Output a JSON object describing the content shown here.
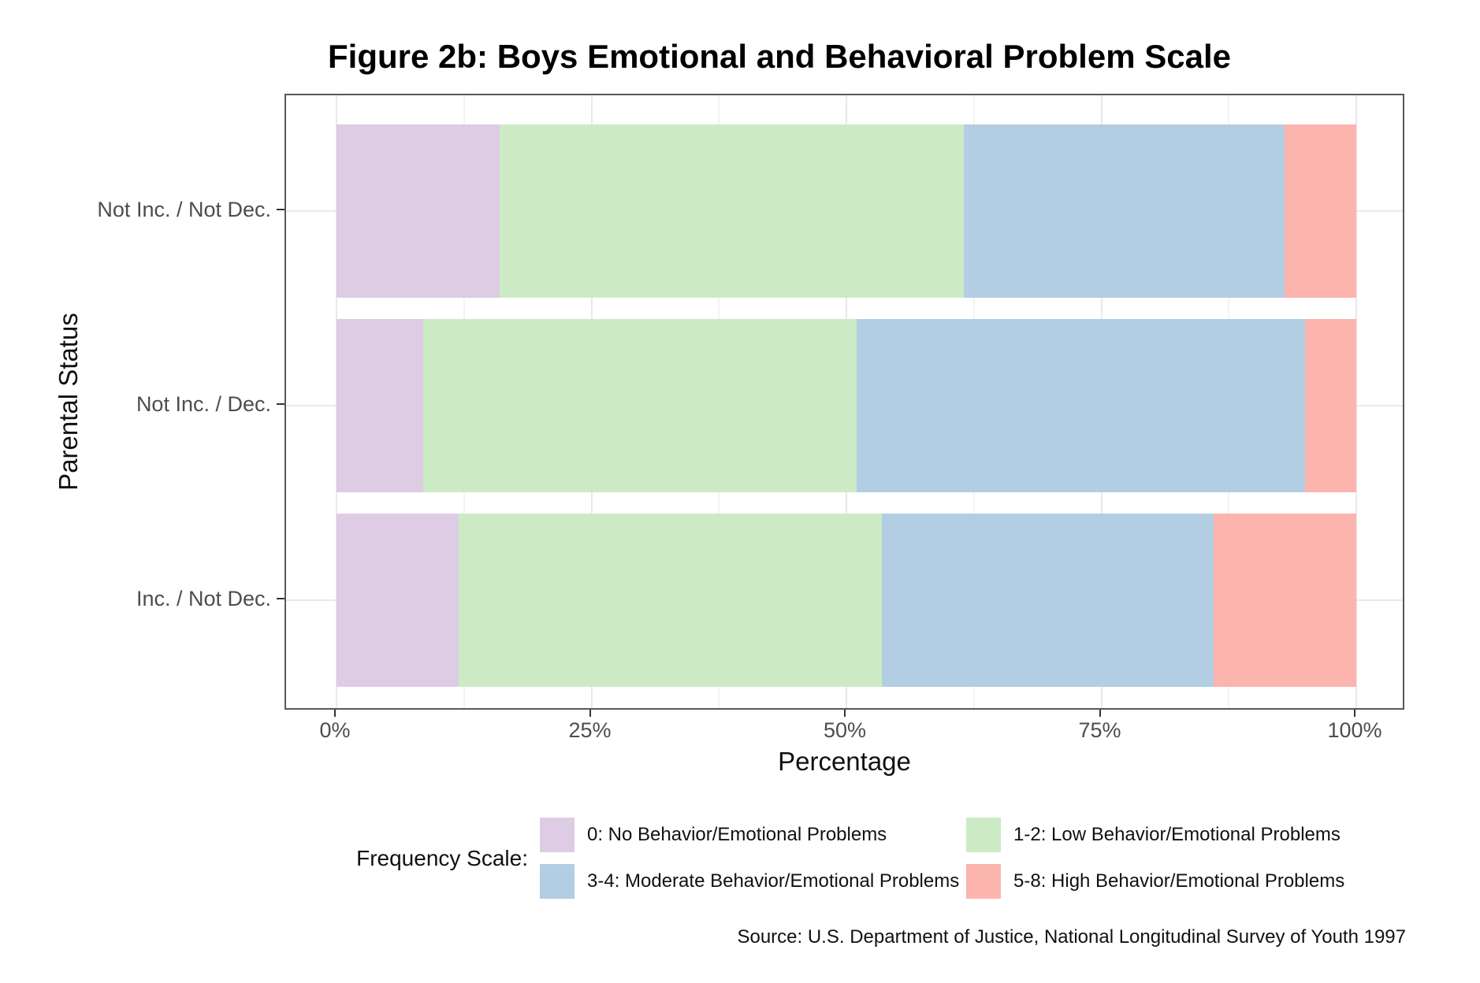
{
  "chart_data": {
    "type": "bar",
    "orientation": "horizontal",
    "stacked": true,
    "units": "percent",
    "title": "Figure 2b: Boys Emotional and Behavioral Problem Scale",
    "xlabel": "Percentage",
    "ylabel": "Parental Status",
    "legend_title": "Frequency Scale:",
    "legend_position": "bottom",
    "caption": "Source: U.S. Department of Justice, National Longitudinal Survey of Youth 1997",
    "grid": true,
    "xlim": [
      0,
      100
    ],
    "x_ticks": [
      {
        "value": 0,
        "label": "0%"
      },
      {
        "value": 25,
        "label": "25%"
      },
      {
        "value": 50,
        "label": "50%"
      },
      {
        "value": 75,
        "label": "75%"
      },
      {
        "value": 100,
        "label": "100%"
      }
    ],
    "x_minor_gridlines": [
      12.5,
      37.5,
      62.5,
      87.5
    ],
    "categories": [
      "Not Inc. / Not Dec.",
      "Not Inc. / Dec.",
      "Inc. / Not Dec."
    ],
    "series": [
      {
        "name": "0: No Behavior/Emotional Problems",
        "color": "#DECBE4",
        "values": [
          16.0,
          8.5,
          12.0
        ]
      },
      {
        "name": "1-2: Low Behavior/Emotional Problems",
        "color": "#CCEBC5",
        "values": [
          45.5,
          42.5,
          41.5
        ]
      },
      {
        "name": "3-4: Moderate Behavior/Emotional Problems",
        "color": "#B3CDE3",
        "values": [
          31.5,
          44.0,
          32.5
        ]
      },
      {
        "name": "5-8: High Behavior/Emotional Problems",
        "color": "#FBB4AE",
        "values": [
          7.0,
          5.0,
          14.0
        ]
      }
    ]
  }
}
